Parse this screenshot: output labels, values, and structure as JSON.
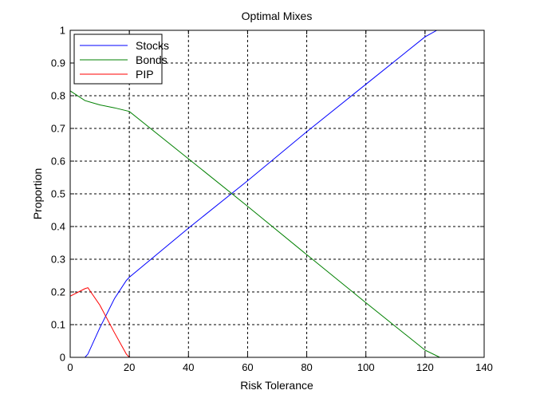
{
  "chart_data": {
    "type": "line",
    "title": "Optimal Mixes",
    "xlabel": "Risk Tolerance",
    "ylabel": "Proportion",
    "xlim": [
      0,
      140
    ],
    "ylim": [
      0,
      1
    ],
    "xticks": [
      0,
      20,
      40,
      60,
      80,
      100,
      120,
      140
    ],
    "yticks": [
      0,
      0.1,
      0.2,
      0.3,
      0.4,
      0.5,
      0.6,
      0.7,
      0.8,
      0.9,
      1
    ],
    "xtick_labels": [
      "0",
      "20",
      "40",
      "60",
      "80",
      "100",
      "120",
      "140"
    ],
    "ytick_labels": [
      "0",
      "0.1",
      "0.2",
      "0.3",
      "0.4",
      "0.5",
      "0.6",
      "0.7",
      "0.8",
      "0.9",
      "1"
    ],
    "grid": true,
    "legend_position": "top-left",
    "series": [
      {
        "name": "Stocks",
        "color": "#0000ff",
        "x": [
          5,
          6,
          10,
          15,
          19,
          20,
          40,
          60,
          80,
          100,
          120,
          124,
          130
        ],
        "y": [
          0,
          0.01,
          0.09,
          0.18,
          0.235,
          0.245,
          0.395,
          0.54,
          0.69,
          0.835,
          0.98,
          1.0,
          1.0
        ]
      },
      {
        "name": "Bonds",
        "color": "#008000",
        "x": [
          0,
          5,
          10,
          15,
          20,
          40,
          60,
          80,
          100,
          120,
          125
        ],
        "y": [
          0.815,
          0.785,
          0.772,
          0.763,
          0.752,
          0.607,
          0.462,
          0.314,
          0.167,
          0.022,
          0.0
        ]
      },
      {
        "name": "PIP",
        "color": "#ff0000",
        "x": [
          0,
          5,
          6,
          10,
          15,
          19,
          20,
          130
        ],
        "y": [
          0.187,
          0.21,
          0.213,
          0.16,
          0.075,
          0.01,
          0.0,
          0.0
        ]
      }
    ]
  }
}
